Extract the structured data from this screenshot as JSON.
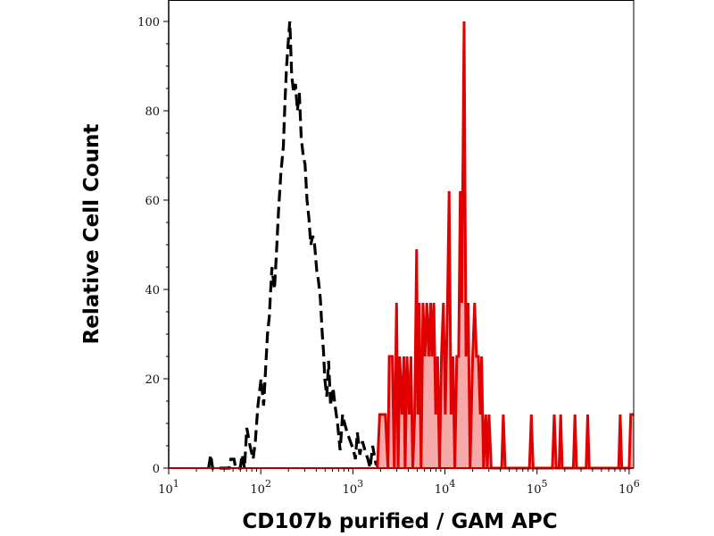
{
  "chart_data": {
    "type": "area",
    "title": "",
    "xlabel": "CD107b purified / GAM APC",
    "ylabel": "Relative Cell Count",
    "xscale": "log",
    "xlim": [
      10,
      1120000
    ],
    "ylim": [
      0,
      100
    ],
    "grid": false,
    "legend": "none",
    "x_ticks": [
      {
        "base": "10",
        "exp": "1",
        "value": 10
      },
      {
        "base": "10",
        "exp": "2",
        "value": 100
      },
      {
        "base": "10",
        "exp": "3",
        "value": 1000
      },
      {
        "base": "10",
        "exp": "4",
        "value": 10000
      },
      {
        "base": "10",
        "exp": "5",
        "value": 100000
      },
      {
        "base": "10",
        "exp": "6",
        "value": 1000000
      }
    ],
    "y_ticks": [
      "0",
      "20",
      "40",
      "60",
      "80",
      "100"
    ],
    "series": [
      {
        "style": "dashed-line",
        "color": "#000000",
        "points": [
          [
            27.1,
            0
          ],
          [
            28.6,
            3
          ],
          [
            30.0,
            0
          ],
          [
            45.4,
            0
          ],
          [
            47.3,
            2
          ],
          [
            51.2,
            2
          ],
          [
            53.3,
            0
          ],
          [
            60.0,
            0
          ],
          [
            62.5,
            3
          ],
          [
            66.6,
            0
          ],
          [
            70.4,
            9
          ],
          [
            76.3,
            5
          ],
          [
            82.6,
            2
          ],
          [
            87.4,
            6
          ],
          [
            93.1,
            14
          ],
          [
            100.8,
            20
          ],
          [
            107.4,
            14
          ],
          [
            118.2,
            30
          ],
          [
            124.0,
            34
          ],
          [
            128.1,
            40
          ],
          [
            132.2,
            45
          ],
          [
            140.9,
            40
          ],
          [
            147.8,
            48
          ],
          [
            156.3,
            58
          ],
          [
            165.2,
            66
          ],
          [
            176.1,
            72
          ],
          [
            183.2,
            82
          ],
          [
            190.6,
            90
          ],
          [
            200.0,
            96
          ],
          [
            206.5,
            100
          ],
          [
            216.6,
            88
          ],
          [
            227.2,
            84
          ],
          [
            238.4,
            86
          ],
          [
            250.0,
            80
          ],
          [
            262.2,
            84
          ],
          [
            275.0,
            74
          ],
          [
            288.6,
            70
          ],
          [
            302.7,
            68
          ],
          [
            317.5,
            60
          ],
          [
            333.1,
            56
          ],
          [
            349.4,
            50
          ],
          [
            366.4,
            52
          ],
          [
            384.4,
            50
          ],
          [
            406.4,
            44
          ],
          [
            422.9,
            42
          ],
          [
            443.6,
            38
          ],
          [
            465.3,
            30
          ],
          [
            480.4,
            26
          ],
          [
            496.0,
            20
          ],
          [
            520.2,
            16
          ],
          [
            545.8,
            24
          ],
          [
            572.5,
            14
          ],
          [
            610.2,
            18
          ],
          [
            640.1,
            14
          ],
          [
            682.2,
            10
          ],
          [
            727.0,
            4
          ],
          [
            775.0,
            12
          ],
          [
            812.8,
            10
          ],
          [
            866.5,
            8
          ],
          [
            938.6,
            6
          ],
          [
            1016,
            4
          ],
          [
            1066,
            2
          ],
          [
            1118,
            8
          ],
          [
            1192,
            3
          ],
          [
            1270,
            6
          ],
          [
            1354,
            4
          ],
          [
            1455,
            2
          ],
          [
            1538,
            0
          ],
          [
            1639,
            5
          ],
          [
            1775,
            1
          ],
          [
            1922,
            0
          ]
        ]
      },
      {
        "style": "filled-area",
        "color": "#e00000",
        "fill": "#f4a0a0",
        "points": [
          [
            1845,
            0
          ],
          [
            1954,
            12
          ],
          [
            2254,
            12
          ],
          [
            2404,
            0
          ],
          [
            2479,
            25
          ],
          [
            2685,
            25
          ],
          [
            2818,
            0
          ],
          [
            2979,
            37
          ],
          [
            3100,
            0
          ],
          [
            3227,
            25
          ],
          [
            3412,
            12
          ],
          [
            3581,
            25
          ],
          [
            3690,
            0
          ],
          [
            3873,
            25
          ],
          [
            4093,
            12
          ],
          [
            4266,
            25
          ],
          [
            4477,
            0
          ],
          [
            4691,
            12
          ],
          [
            4920,
            49
          ],
          [
            5082,
            12
          ],
          [
            5248,
            37
          ],
          [
            5500,
            0
          ],
          [
            5768,
            37
          ],
          [
            6053,
            25
          ],
          [
            6353,
            37
          ],
          [
            6668,
            25
          ],
          [
            6982,
            37
          ],
          [
            7211,
            25
          ],
          [
            7568,
            37
          ],
          [
            7943,
            12
          ],
          [
            8318,
            25
          ],
          [
            8730,
            0
          ],
          [
            9162,
            25
          ],
          [
            9616,
            37
          ],
          [
            10070,
            12
          ],
          [
            10660,
            37
          ],
          [
            11090,
            62
          ],
          [
            11640,
            12
          ],
          [
            12220,
            25
          ],
          [
            12790,
            0
          ],
          [
            13430,
            25
          ],
          [
            14090,
            25
          ],
          [
            14660,
            62
          ],
          [
            15240,
            37
          ],
          [
            16140,
            100
          ],
          [
            16900,
            25
          ],
          [
            17900,
            37
          ],
          [
            18750,
            0
          ],
          [
            20000,
            25
          ],
          [
            20990,
            37
          ],
          [
            22030,
            25
          ],
          [
            23070,
            25
          ],
          [
            24210,
            12
          ],
          [
            25000,
            25
          ],
          [
            26240,
            0
          ],
          [
            27730,
            12
          ],
          [
            28840,
            0
          ],
          [
            30060,
            12
          ],
          [
            31770,
            0
          ],
          [
            41300,
            0
          ],
          [
            42950,
            12
          ],
          [
            45080,
            0
          ],
          [
            82600,
            0
          ],
          [
            86700,
            12
          ],
          [
            90800,
            0
          ],
          [
            146600,
            0
          ],
          [
            153800,
            12
          ],
          [
            161400,
            0
          ],
          [
            173400,
            0
          ],
          [
            180300,
            12
          ],
          [
            187500,
            0
          ],
          [
            247700,
            0
          ],
          [
            258200,
            12
          ],
          [
            268500,
            0
          ],
          [
            341200,
            0
          ],
          [
            354800,
            12
          ],
          [
            369000,
            0
          ],
          [
            769000,
            0
          ],
          [
            799800,
            12
          ],
          [
            831800,
            0
          ],
          [
            1000000,
            0
          ],
          [
            1040000,
            12
          ],
          [
            1120000,
            12
          ]
        ]
      }
    ]
  }
}
